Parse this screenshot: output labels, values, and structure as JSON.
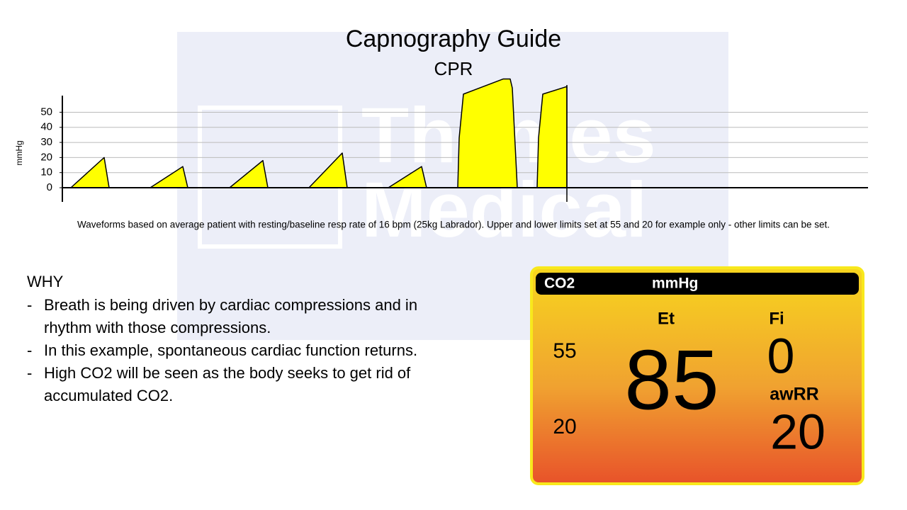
{
  "watermark": {
    "line1": "Thames",
    "line2": "Medical"
  },
  "chart_data": {
    "type": "area",
    "title": "Capnography Guide",
    "subtitle": "CPR",
    "y_label": "mmHg",
    "x": [
      12,
      59,
      66,
      124,
      170,
      177,
      236,
      283,
      290,
      348,
      395,
      402,
      460,
      507,
      514,
      558,
      560,
      566,
      622,
      632,
      635,
      642,
      670,
      672,
      678,
      712,
      712
    ],
    "values": [
      0,
      20,
      0,
      0,
      14,
      0,
      0,
      18,
      0,
      0,
      23,
      0,
      0,
      14,
      0,
      0,
      33,
      62,
      72,
      72,
      66,
      0,
      0,
      33,
      62,
      67,
      0
    ],
    "color": "#ffff00",
    "xlim": [
      0,
      1137
    ],
    "ylim": [
      0,
      61
    ],
    "yticks": [
      0,
      10,
      20,
      30,
      40,
      50
    ],
    "grid": true,
    "note": "Waveforms based on average patient with resting/baseline resp rate of 16 bpm (25kg Labrador). Upper and lower limits set at 55 and 20 for example only - other limits can be set."
  },
  "why": {
    "heading": "WHY",
    "items": [
      [
        "Breath is being driven by cardiac compressions and in",
        "rhythm with those compressions."
      ],
      [
        "In this example, spontaneous cardiac function returns."
      ],
      [
        "High CO2 will be seen as the body seeks to get rid of",
        "accumulated CO2."
      ]
    ],
    "bullet": "-"
  },
  "monitor": {
    "label": "CO2",
    "unit": "mmHg",
    "et_label": "Et",
    "fi_label": "Fi",
    "upper_limit": "55",
    "lower_limit": "20",
    "et_value": "85",
    "fi_value": "0",
    "awrr_label": "awRR",
    "awrr_value": "20"
  }
}
